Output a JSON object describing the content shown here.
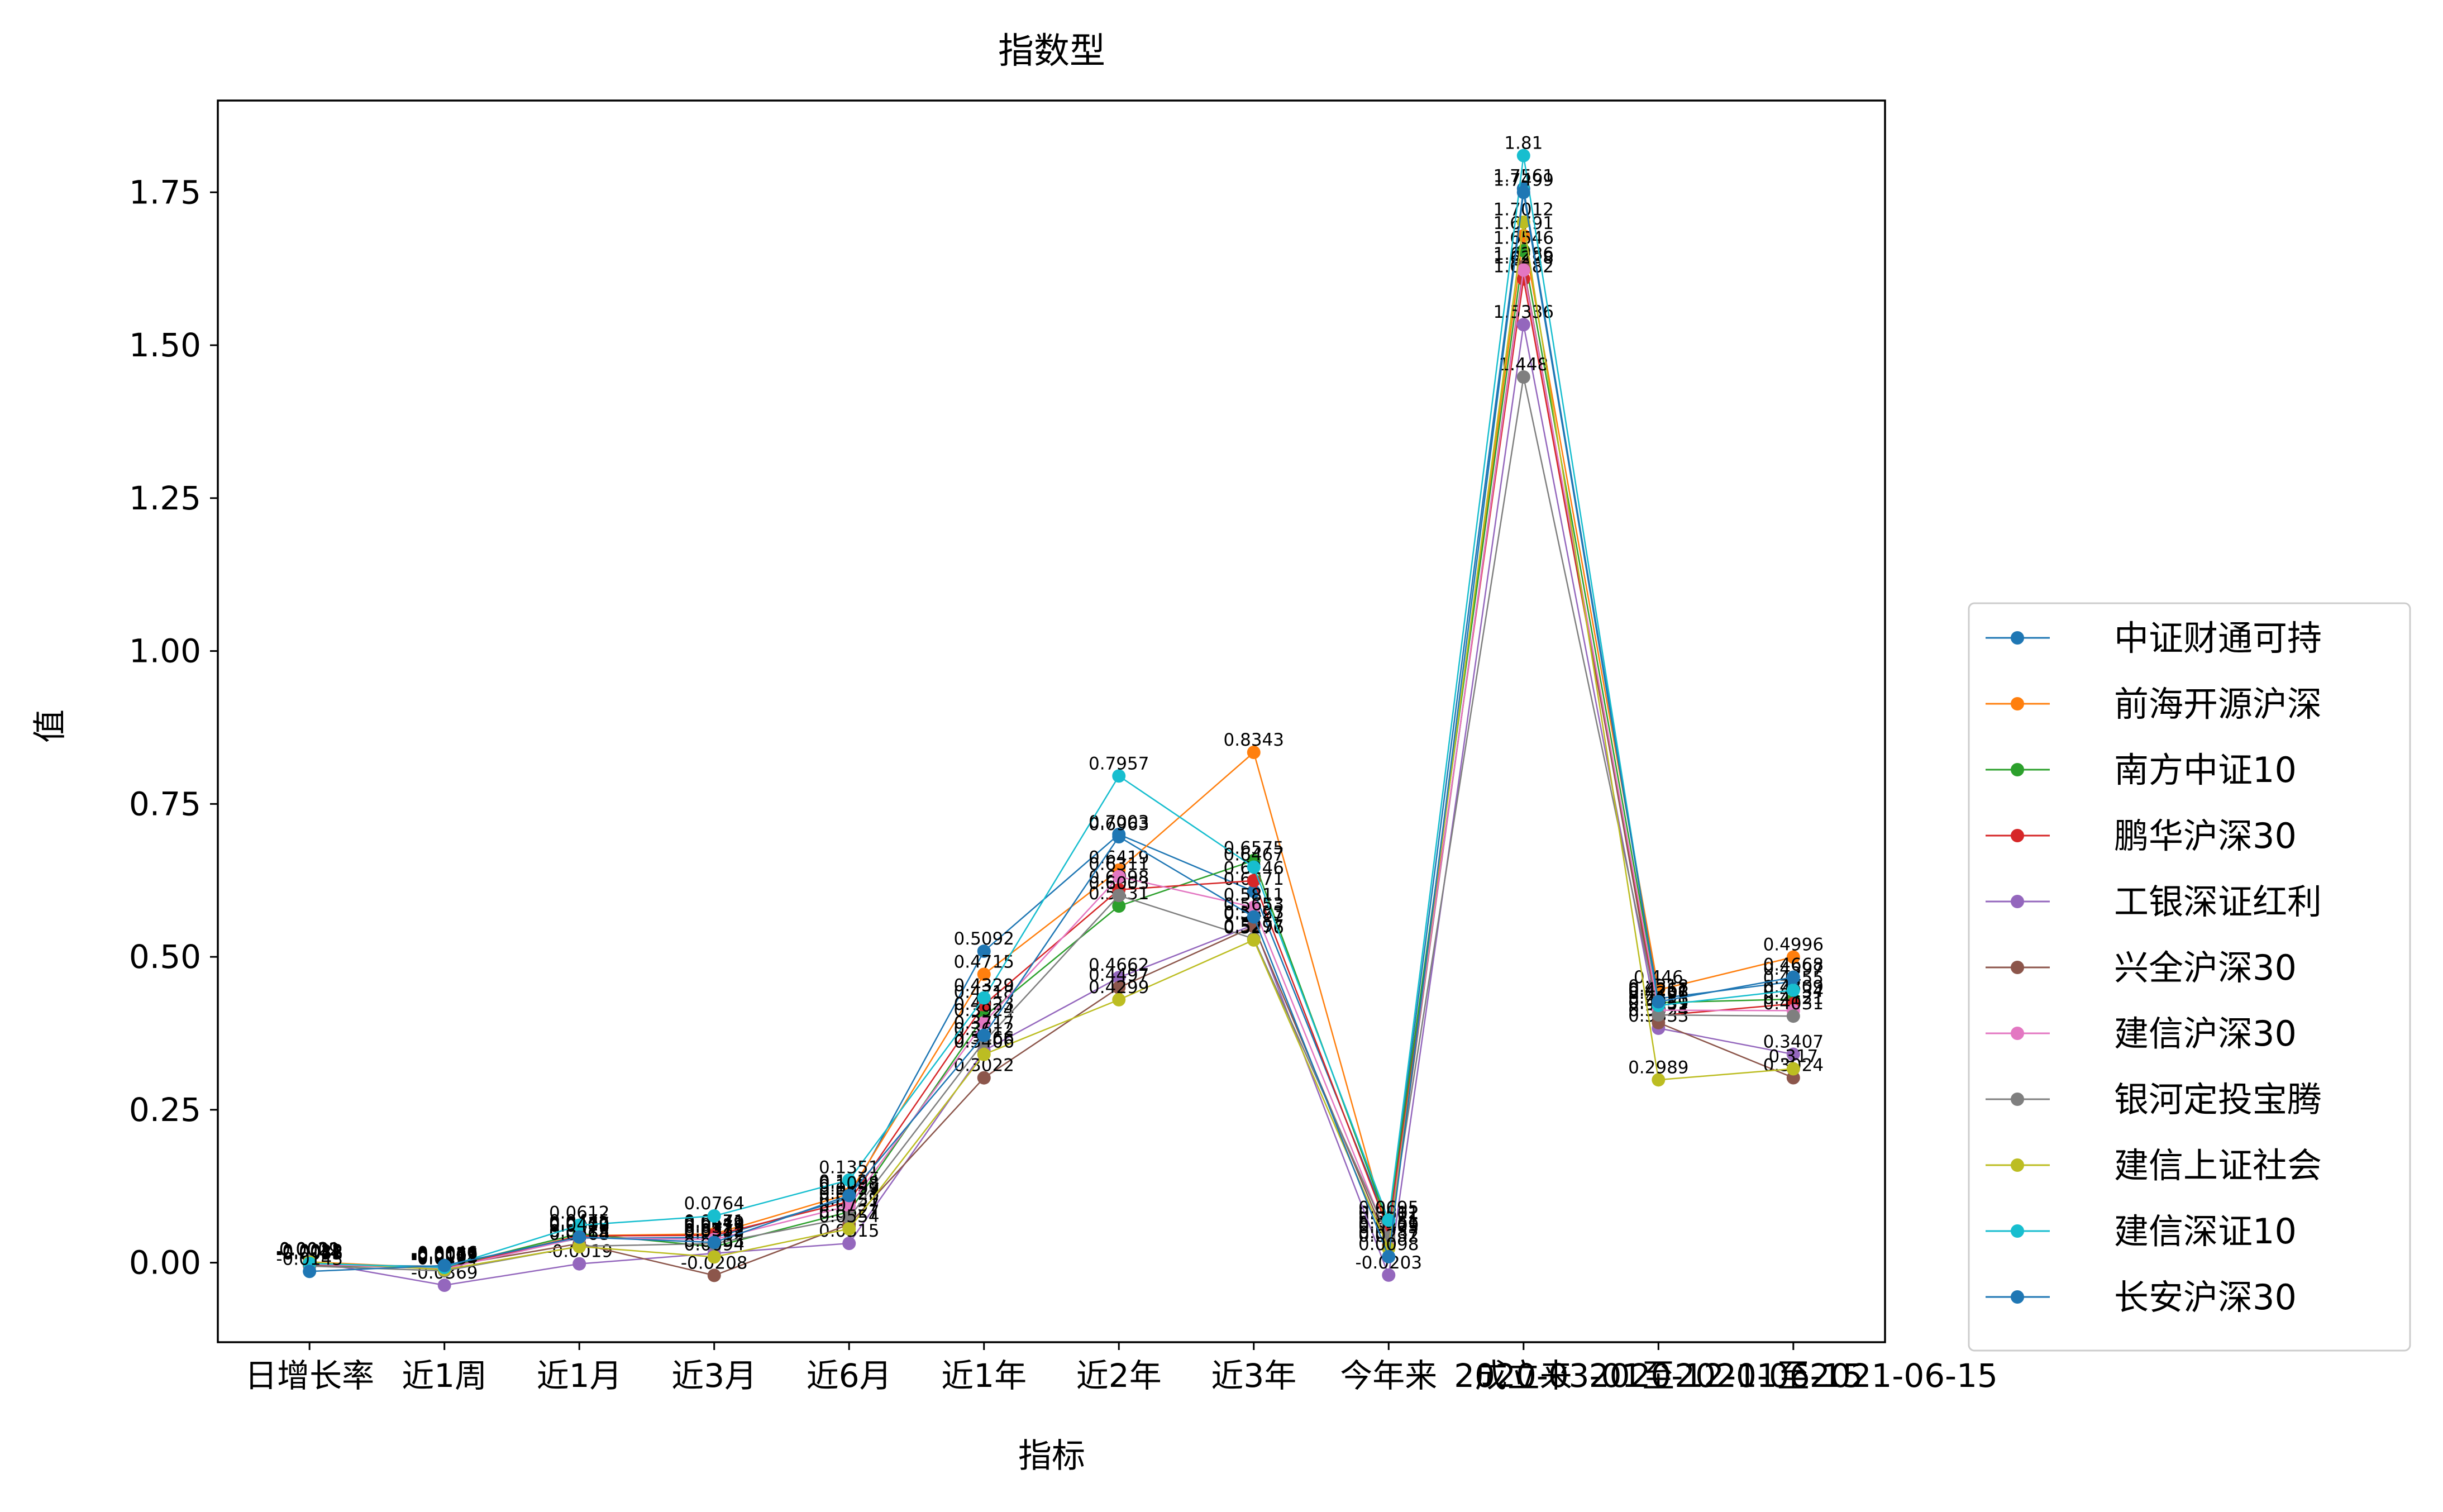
{
  "chart_data": {
    "type": "line",
    "title": "指数型",
    "xlabel": "指标",
    "ylabel": "值",
    "categories": [
      "日增长率",
      "近1周",
      "近1月",
      "近3月",
      "近6月",
      "近1年",
      "近2年",
      "近3年",
      "今年来",
      "成立来",
      "2020-03-01至2021-06-15",
      "2020-12-01至2021-06-15"
    ],
    "ylim": [
      -0.13,
      1.9
    ],
    "yticks": [
      "0.00",
      "0.25",
      "0.50",
      "0.75",
      "1.00",
      "1.25",
      "1.50",
      "1.75"
    ],
    "ytick_values": [
      0,
      0.25,
      0.5,
      0.75,
      1.0,
      1.25,
      1.5,
      1.75
    ],
    "grid": false,
    "legend_position": "right",
    "series": [
      {
        "name": "中证财通可持",
        "color": "#1f77b4",
        "values": [
          -0.0033,
          -0.0059,
          0.0399,
          0.0412,
          0.1053,
          0.5092,
          0.7003,
          0.6071,
          0.0601,
          1.7561,
          0.4318,
          0.4597
        ]
      },
      {
        "name": "前海开源沪深",
        "color": "#ff7f0e",
        "values": [
          0.0012,
          -0.0089,
          0.0442,
          0.0471,
          0.1124,
          0.4715,
          0.6419,
          0.8343,
          0.0451,
          1.6791,
          0.446,
          0.4996
        ]
      },
      {
        "name": "南方中证10",
        "color": "#2ca02c",
        "values": [
          -0.0048,
          -0.0079,
          0.0475,
          0.0262,
          0.0831,
          0.4023,
          0.5831,
          0.6575,
          0.0612,
          1.6546,
          0.4251,
          0.4309
        ]
      },
      {
        "name": "鹏华沪深30",
        "color": "#d62728",
        "values": [
          -0.0028,
          -0.0097,
          0.0437,
          0.0449,
          0.0999,
          0.4218,
          0.6098,
          0.6246,
          0.0521,
          1.6082,
          0.4039,
          0.4234
        ]
      },
      {
        "name": "工银深证红利",
        "color": "#9467bd",
        "values": [
          0.0021,
          -0.0369,
          -0.0019,
          0.0153,
          0.0315,
          0.3466,
          0.4662,
          0.5523,
          -0.0203,
          1.5336,
          0.3833,
          0.3407
        ]
      },
      {
        "name": "兴全沪深30",
        "color": "#8c564b",
        "values": [
          -0.0041,
          -0.0065,
          0.0313,
          -0.0208,
          0.0627,
          0.3022,
          0.4497,
          0.5497,
          0.0287,
          1.6286,
          0.3924,
          0.3024
        ]
      },
      {
        "name": "建信沪深30",
        "color": "#e377c2",
        "values": [
          -0.0022,
          -0.0101,
          0.0408,
          0.0379,
          0.0928,
          0.3924,
          0.6311,
          0.5811,
          0.0375,
          1.6228,
          0.4128,
          0.4121
        ]
      },
      {
        "name": "银河定投宝腾",
        "color": "#7f7f7f",
        "values": [
          -0.0055,
          -0.0134,
          0.0268,
          0.0313,
          0.0737,
          0.3612,
          0.6003,
          0.5297,
          0.0409,
          1.448,
          0.4051,
          0.4031
        ]
      },
      {
        "name": "建信上证社会",
        "color": "#bcbd22",
        "values": [
          0.0009,
          -0.0113,
          0.0264,
          0.0094,
          0.0554,
          0.3406,
          0.4299,
          0.5276,
          0.0232,
          1.7012,
          0.2989,
          0.317
        ]
      },
      {
        "name": "建信深证10",
        "color": "#17becf",
        "values": [
          -0.0012,
          -0.0077,
          0.0612,
          0.0764,
          0.1351,
          0.4329,
          0.7957,
          0.6467,
          0.0695,
          1.81,
          0.4206,
          0.4455
        ]
      },
      {
        "name": "长安沪深30",
        "color": "#1f77b4",
        "values": [
          -0.0143,
          -0.0046,
          0.0419,
          0.0332,
          0.1098,
          0.3717,
          0.6963,
          0.5653,
          0.0098,
          1.7499,
          0.4267,
          0.4668
        ]
      }
    ]
  }
}
